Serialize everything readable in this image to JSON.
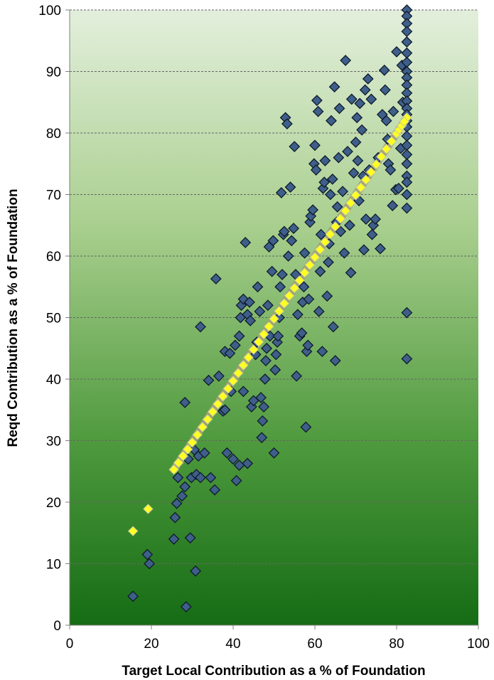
{
  "chart_data": {
    "type": "scatter",
    "title": "",
    "xlabel": "Target Local Contribution as a % of Foundation",
    "ylabel": "Reqd Contribution as a % of Foundation",
    "xlim": [
      0,
      100
    ],
    "ylim": [
      0,
      100
    ],
    "x_ticks": [
      "0",
      "20",
      "40",
      "60",
      "80",
      "100"
    ],
    "y_ticks": [
      "0",
      "10",
      "20",
      "30",
      "40",
      "50",
      "60",
      "70",
      "80",
      "90",
      "100"
    ],
    "grid": "horizontal dashed",
    "legend": "none",
    "background": "vertical gradient, light green (top) to dark green (bottom)",
    "colors": {
      "scatter_fill": "#3e5f8a",
      "scatter_stroke": "#101a2a",
      "trend_fill": "#ffff22",
      "trend_stroke": "#a0a070",
      "gradient_top": "#e3efdc",
      "gradient_bottom": "#156c14"
    },
    "series": [
      {
        "marker": "diamond",
        "points": [
          [
            15.5,
            4.7
          ],
          [
            19,
            11.5
          ],
          [
            19.5,
            10
          ],
          [
            25.5,
            14
          ],
          [
            28.5,
            3
          ],
          [
            29.5,
            14.2
          ],
          [
            30.8,
            8.8
          ],
          [
            25.8,
            17.5
          ],
          [
            26.2,
            19.8
          ],
          [
            27.5,
            21
          ],
          [
            28.2,
            22.5
          ],
          [
            26.5,
            24
          ],
          [
            29.8,
            24
          ],
          [
            31,
            24.5
          ],
          [
            32,
            24
          ],
          [
            28.2,
            36.2
          ],
          [
            29,
            27
          ],
          [
            30.5,
            28.5
          ],
          [
            31.5,
            27.5
          ],
          [
            33,
            28
          ],
          [
            34.5,
            24
          ],
          [
            35.5,
            22
          ],
          [
            32,
            48.5
          ],
          [
            34,
            39.8
          ],
          [
            35.8,
            56.3
          ],
          [
            36.5,
            40.5
          ],
          [
            37.5,
            34.8
          ],
          [
            38,
            35
          ],
          [
            38.5,
            28
          ],
          [
            39.5,
            38
          ],
          [
            38,
            44.5
          ],
          [
            39.2,
            44.2
          ],
          [
            40.5,
            45.5
          ],
          [
            40.8,
            23.5
          ],
          [
            40,
            27
          ],
          [
            41.5,
            26
          ],
          [
            43.5,
            26.3
          ],
          [
            42.5,
            38
          ],
          [
            41.5,
            47
          ],
          [
            41.8,
            50
          ],
          [
            42,
            52
          ],
          [
            42.5,
            53
          ],
          [
            43,
            62.2
          ],
          [
            43.5,
            50.5
          ],
          [
            44,
            52.5
          ],
          [
            44.2,
            49.5
          ],
          [
            44.5,
            35.5
          ],
          [
            45,
            36.5
          ],
          [
            45.5,
            44
          ],
          [
            45.8,
            46
          ],
          [
            46,
            55
          ],
          [
            46.5,
            51
          ],
          [
            46.8,
            37
          ],
          [
            47,
            30.5
          ],
          [
            47.2,
            33.2
          ],
          [
            47.5,
            35.5
          ],
          [
            47.8,
            40
          ],
          [
            48,
            43
          ],
          [
            48.2,
            45
          ],
          [
            48.5,
            52
          ],
          [
            48.8,
            61.5
          ],
          [
            49,
            47
          ],
          [
            49.5,
            57.5
          ],
          [
            49.8,
            62.5
          ],
          [
            50,
            28
          ],
          [
            50.3,
            41.5
          ],
          [
            50.5,
            44
          ],
          [
            50.8,
            46
          ],
          [
            51,
            47
          ],
          [
            51.3,
            50
          ],
          [
            51.5,
            55
          ],
          [
            51.8,
            70.3
          ],
          [
            52,
            57
          ],
          [
            52.3,
            63.5
          ],
          [
            52.5,
            64
          ],
          [
            52.8,
            82.5
          ],
          [
            53.2,
            81.5
          ],
          [
            53.5,
            60
          ],
          [
            54,
            71.2
          ],
          [
            54.3,
            62.5
          ],
          [
            54.8,
            64.5
          ],
          [
            55,
            77.8
          ],
          [
            55.3,
            57
          ],
          [
            55.5,
            40.5
          ],
          [
            55.8,
            50.5
          ],
          [
            56.3,
            47
          ],
          [
            56.8,
            47.5
          ],
          [
            57,
            52.5
          ],
          [
            57.3,
            55
          ],
          [
            57.5,
            60.5
          ],
          [
            57.8,
            32.2
          ],
          [
            58,
            44.5
          ],
          [
            58.3,
            45.5
          ],
          [
            58.5,
            53
          ],
          [
            58.8,
            65.5
          ],
          [
            59,
            66.5
          ],
          [
            59.5,
            67.5
          ],
          [
            59.8,
            75
          ],
          [
            60,
            78
          ],
          [
            60.3,
            74
          ],
          [
            60.5,
            85.3
          ],
          [
            60.8,
            83.5
          ],
          [
            61,
            51
          ],
          [
            61.3,
            57.5
          ],
          [
            61.5,
            63.5
          ],
          [
            61.8,
            44.5
          ],
          [
            62,
            71
          ],
          [
            62.3,
            72
          ],
          [
            62.5,
            75.5
          ],
          [
            63,
            53.5
          ],
          [
            63.3,
            59
          ],
          [
            63.5,
            62
          ],
          [
            63.8,
            70
          ],
          [
            64,
            82
          ],
          [
            64.3,
            72.5
          ],
          [
            64.5,
            48.5
          ],
          [
            64.8,
            87.5
          ],
          [
            65,
            43
          ],
          [
            65.3,
            65.5
          ],
          [
            65.5,
            68
          ],
          [
            65.8,
            76
          ],
          [
            66,
            84
          ],
          [
            66.3,
            64
          ],
          [
            66.8,
            70.5
          ],
          [
            67.2,
            60.5
          ],
          [
            67.5,
            91.8
          ],
          [
            68,
            77
          ],
          [
            68.5,
            65
          ],
          [
            68.8,
            57.3
          ],
          [
            69,
            85.5
          ],
          [
            69.5,
            73.5
          ],
          [
            70,
            78.5
          ],
          [
            70.3,
            82.5
          ],
          [
            70.5,
            75.5
          ],
          [
            70.8,
            69
          ],
          [
            71,
            84.8
          ],
          [
            71.5,
            80.5
          ],
          [
            71.8,
            73
          ],
          [
            72,
            61
          ],
          [
            72.3,
            87
          ],
          [
            72.5,
            66
          ],
          [
            73,
            88.8
          ],
          [
            73.3,
            74
          ],
          [
            73.8,
            85.5
          ],
          [
            74,
            63.5
          ],
          [
            74.3,
            65
          ],
          [
            74.8,
            66
          ],
          [
            75.5,
            76
          ],
          [
            76,
            61.2
          ],
          [
            76.5,
            83
          ],
          [
            77,
            90.2
          ],
          [
            77.2,
            87
          ],
          [
            77.5,
            82
          ],
          [
            77.8,
            79
          ],
          [
            78,
            75
          ],
          [
            78.5,
            74
          ],
          [
            79,
            68.2
          ],
          [
            79.2,
            83.5
          ],
          [
            79.8,
            70.8
          ],
          [
            80,
            93.2
          ],
          [
            80.5,
            71
          ],
          [
            81,
            77.5
          ],
          [
            81.3,
            91
          ],
          [
            81.5,
            85
          ],
          [
            82.5,
            100
          ],
          [
            82.5,
            99
          ],
          [
            82.5,
            97.8
          ],
          [
            82.5,
            96.5
          ],
          [
            82.5,
            94.8
          ],
          [
            82.5,
            93
          ],
          [
            82.5,
            91.5
          ],
          [
            82.5,
            90
          ],
          [
            82.5,
            89
          ],
          [
            82.5,
            87.8
          ],
          [
            82.5,
            86.5
          ],
          [
            82.5,
            85.2
          ],
          [
            82.5,
            84
          ],
          [
            82.5,
            83
          ],
          [
            82.5,
            82
          ],
          [
            82.5,
            81
          ],
          [
            82.5,
            79.5
          ],
          [
            82.5,
            78
          ],
          [
            82.5,
            76.5
          ],
          [
            82.5,
            75
          ],
          [
            82.5,
            73
          ],
          [
            82.5,
            72
          ],
          [
            82.5,
            70
          ],
          [
            82.5,
            67.8
          ],
          [
            82.5,
            50.8
          ],
          [
            82.5,
            43.3
          ]
        ]
      },
      {
        "marker": "diamond",
        "role": "trend",
        "points": [
          [
            15.5,
            15.3
          ],
          [
            19.2,
            18.9
          ],
          [
            25.5,
            25.3
          ],
          [
            30,
            29.7
          ],
          [
            35,
            34.7
          ],
          [
            40,
            39.7
          ],
          [
            45,
            44.8
          ],
          [
            50,
            49.8
          ],
          [
            55,
            54.8
          ],
          [
            60,
            59.8
          ],
          [
            65,
            64.8
          ],
          [
            70,
            69.9
          ],
          [
            75,
            74.9
          ],
          [
            80,
            79.9
          ],
          [
            82.5,
            82.5
          ]
        ]
      }
    ]
  }
}
